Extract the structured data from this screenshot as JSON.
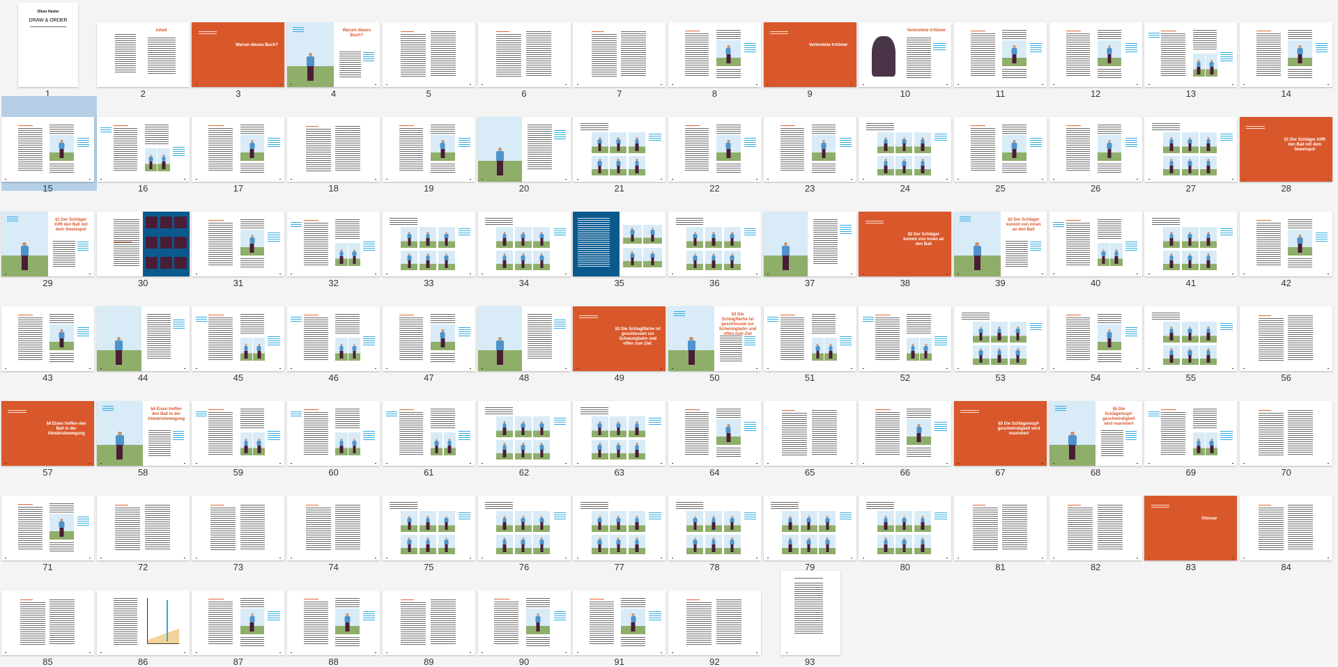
{
  "colors": {
    "orange": "#d9582b",
    "blue": "#0b5a8e",
    "cyan": "#2aa8e0",
    "selection": "#b5cfe6",
    "sky": "#d8ebf7",
    "grass": "#8fae6a"
  },
  "selected_page": 15,
  "cover": {
    "author": "Oliver Heuler",
    "title": "DRAW & ORDER"
  },
  "toc": {
    "title": "Inhalt"
  },
  "pages": [
    {
      "n": 1,
      "kind": "cover"
    },
    {
      "n": 2,
      "kind": "toc"
    },
    {
      "n": 3,
      "kind": "orange",
      "heading": "Warum dieses Buch?"
    },
    {
      "n": 4,
      "kind": "photo-heading",
      "heading": "Warum dieses Buch?"
    },
    {
      "n": 5,
      "kind": "text"
    },
    {
      "n": 6,
      "kind": "text"
    },
    {
      "n": 7,
      "kind": "text"
    },
    {
      "n": 8,
      "kind": "text-figure"
    },
    {
      "n": 9,
      "kind": "orange",
      "heading": "Verbreitete Irrtümer"
    },
    {
      "n": 10,
      "kind": "illustration-heading",
      "heading": "Verbreitete Irrtümer"
    },
    {
      "n": 11,
      "kind": "text-figure"
    },
    {
      "n": 12,
      "kind": "text-figure"
    },
    {
      "n": 13,
      "kind": "text-figures"
    },
    {
      "n": 14,
      "kind": "text-figure"
    },
    {
      "n": 15,
      "kind": "text-figure"
    },
    {
      "n": 16,
      "kind": "text-figures"
    },
    {
      "n": 17,
      "kind": "text-figure"
    },
    {
      "n": 18,
      "kind": "text"
    },
    {
      "n": 19,
      "kind": "text-figure"
    },
    {
      "n": 20,
      "kind": "photo-figure"
    },
    {
      "n": 21,
      "kind": "figures"
    },
    {
      "n": 22,
      "kind": "text-figure"
    },
    {
      "n": 23,
      "kind": "text-figure"
    },
    {
      "n": 24,
      "kind": "figures"
    },
    {
      "n": 25,
      "kind": "text-figure"
    },
    {
      "n": 26,
      "kind": "text-figure"
    },
    {
      "n": 27,
      "kind": "figures"
    },
    {
      "n": 28,
      "kind": "orange",
      "heading": "§1 Der Schläger trifft den Ball mit dem Sweetspot"
    },
    {
      "n": 29,
      "kind": "photo-heading",
      "heading": "§1 Der Schläger trifft den Ball mit dem Sweetspot"
    },
    {
      "n": 30,
      "kind": "blue-right"
    },
    {
      "n": 31,
      "kind": "text-figure"
    },
    {
      "n": 32,
      "kind": "text-figures"
    },
    {
      "n": 33,
      "kind": "figures"
    },
    {
      "n": 34,
      "kind": "figures"
    },
    {
      "n": 35,
      "kind": "blue-left"
    },
    {
      "n": 36,
      "kind": "figures"
    },
    {
      "n": 37,
      "kind": "photo-figure"
    },
    {
      "n": 38,
      "kind": "orange",
      "heading": "§2 Der Schläger kommt von innen an den Ball"
    },
    {
      "n": 39,
      "kind": "photo-heading",
      "heading": "§2 Der Schläger kommt von innen an den Ball"
    },
    {
      "n": 40,
      "kind": "text-figures"
    },
    {
      "n": 41,
      "kind": "figures"
    },
    {
      "n": 42,
      "kind": "text-figure"
    },
    {
      "n": 43,
      "kind": "text-figure"
    },
    {
      "n": 44,
      "kind": "photo-figure"
    },
    {
      "n": 45,
      "kind": "text-figures"
    },
    {
      "n": 46,
      "kind": "text-figures"
    },
    {
      "n": 47,
      "kind": "text-figure"
    },
    {
      "n": 48,
      "kind": "photo-figure"
    },
    {
      "n": 49,
      "kind": "orange",
      "heading": "§3 Die Schlagfläche ist geschlossen zur Schwungbahn und offen zum Ziel."
    },
    {
      "n": 50,
      "kind": "photo-heading",
      "heading": "§3 Die Schlagfläche ist geschlossen zur Schwungbahn und offen zum Ziel"
    },
    {
      "n": 51,
      "kind": "text-figures"
    },
    {
      "n": 52,
      "kind": "text-figures"
    },
    {
      "n": 53,
      "kind": "figures"
    },
    {
      "n": 54,
      "kind": "text-figure"
    },
    {
      "n": 55,
      "kind": "figures"
    },
    {
      "n": 56,
      "kind": "text"
    },
    {
      "n": 57,
      "kind": "orange",
      "heading": "§4 Eisen treffen den Ball in der Abwärtsbewegung"
    },
    {
      "n": 58,
      "kind": "photo-heading",
      "heading": "§4 Eisen treffen den Ball in der Abwärtsbewegung"
    },
    {
      "n": 59,
      "kind": "text-figures"
    },
    {
      "n": 60,
      "kind": "text-figures"
    },
    {
      "n": 61,
      "kind": "text-figures"
    },
    {
      "n": 62,
      "kind": "figures"
    },
    {
      "n": 63,
      "kind": "figures"
    },
    {
      "n": 64,
      "kind": "text-figure"
    },
    {
      "n": 65,
      "kind": "text"
    },
    {
      "n": 66,
      "kind": "text-figure"
    },
    {
      "n": 67,
      "kind": "orange",
      "heading": "§5 Die Schlägerkopf-geschwindigkeit wird maximiert"
    },
    {
      "n": 68,
      "kind": "photo-heading",
      "heading": "§5 Die Schlägerkopf-geschwindigkeit wird maximiert"
    },
    {
      "n": 69,
      "kind": "text-figures"
    },
    {
      "n": 70,
      "kind": "text"
    },
    {
      "n": 71,
      "kind": "text-figure"
    },
    {
      "n": 72,
      "kind": "text"
    },
    {
      "n": 73,
      "kind": "text"
    },
    {
      "n": 74,
      "kind": "text"
    },
    {
      "n": 75,
      "kind": "figures"
    },
    {
      "n": 76,
      "kind": "figures"
    },
    {
      "n": 77,
      "kind": "figures"
    },
    {
      "n": 78,
      "kind": "figures"
    },
    {
      "n": 79,
      "kind": "figures"
    },
    {
      "n": 80,
      "kind": "figures"
    },
    {
      "n": 81,
      "kind": "text"
    },
    {
      "n": 82,
      "kind": "text"
    },
    {
      "n": 83,
      "kind": "orange",
      "heading": "Glossar"
    },
    {
      "n": 84,
      "kind": "text"
    },
    {
      "n": 85,
      "kind": "text"
    },
    {
      "n": 86,
      "kind": "chart"
    },
    {
      "n": 87,
      "kind": "text-figure"
    },
    {
      "n": 88,
      "kind": "text-figure"
    },
    {
      "n": 89,
      "kind": "text"
    },
    {
      "n": 90,
      "kind": "text-figure"
    },
    {
      "n": 91,
      "kind": "text-figure"
    },
    {
      "n": 92,
      "kind": "text"
    },
    {
      "n": 93,
      "kind": "portrait-text"
    }
  ]
}
